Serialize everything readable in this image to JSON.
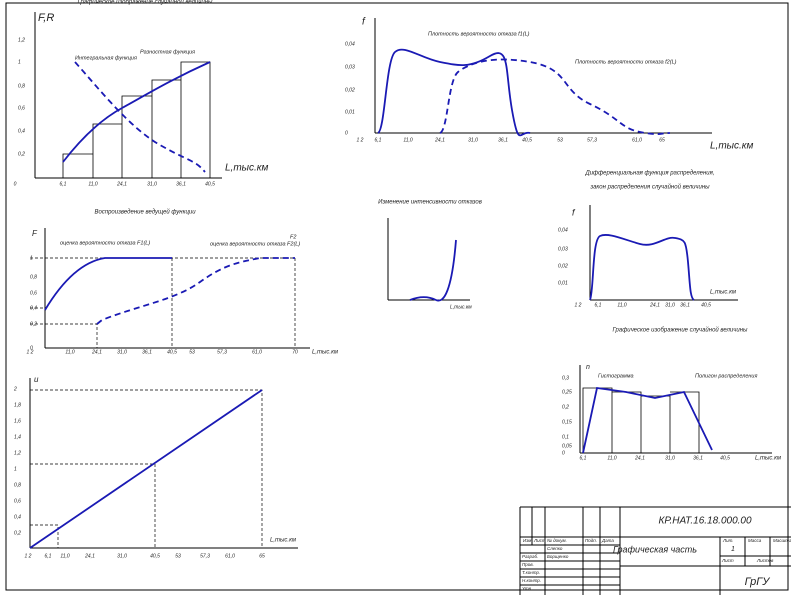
{
  "charts": [
    {
      "title": "Графическое изображение случайной величины",
      "ylabel": "F,R",
      "yticks": [
        "1,2",
        "1",
        "0,8",
        "0,6",
        "0,4",
        "0,2"
      ],
      "xticks": [
        "0",
        "6,1",
        "11,0",
        "24,1",
        "31,0",
        "36,1",
        "40,5"
      ],
      "xlabel": "L,тыс.км",
      "notes": [
        "Интегральная функция",
        "Разностная функция"
      ]
    },
    {
      "ylabel": "f",
      "yticks": [
        "0,04",
        "0,03",
        "0,02",
        "0,01",
        "0"
      ],
      "xticks": [
        "1 2",
        "6,1",
        "11,0",
        "24,1",
        "31,0",
        "36,1",
        "40,5",
        "53",
        "57,3",
        "61,0",
        "65"
      ],
      "xlabel": "L,тыс.км",
      "notes": [
        "Плотность вероятности отказа f1(L)",
        "Плотность вероятности отказа f2(L)"
      ]
    },
    {
      "title": "Воспроизведение ведущей функции",
      "ylabel": "F",
      "yticks": [
        "1",
        "0,8",
        "0,6",
        "0,4",
        "0,2",
        "0"
      ],
      "xticks": [
        "1 2",
        "11,0",
        "24,1",
        "31,0",
        "36,1",
        "40,5",
        "53",
        "57,3",
        "61,0",
        "70"
      ],
      "xlabel": "L,тыс.км",
      "notes": [
        "оценка вероятности отказа F1(L)",
        "оценка вероятности отказа F2(L)",
        "F2"
      ]
    },
    {
      "title": "Изменение интенсивности отказов",
      "xlabel": "L,тыс.км"
    },
    {
      "title": "Дифференциальная функция распределения,",
      "subtitle": "закон распределения случайной величины",
      "ylabel": "f",
      "yticks": [
        "0,04",
        "0,03",
        "0,02",
        "0,01"
      ],
      "xticks": [
        "1 2",
        "6,1",
        "11,0",
        "24,1",
        "31,0",
        "36,1",
        "40,5"
      ],
      "xlabel": "L,тыс.км"
    },
    {
      "ylabel": "u",
      "yticks": [
        "2",
        "1,8",
        "1,6",
        "1,4",
        "1,2",
        "1",
        "0,8",
        "0,6",
        "0,4",
        "0,2"
      ],
      "xticks": [
        "1 2",
        "6,1",
        "11,0",
        "24,1",
        "31,0",
        "40,5",
        "53",
        "57,3",
        "61,0",
        "65"
      ],
      "xlabel": "L,тыс.км"
    },
    {
      "title": "Графическое изображение случайной величины",
      "ylabel": "n",
      "yticks": [
        "0,3",
        "0,25",
        "0,2",
        "0,15",
        "0,1",
        "0,05",
        "0"
      ],
      "xticks": [
        "6,1",
        "11,0",
        "24,1",
        "31,0",
        "36,1",
        "40,5"
      ],
      "xlabel": "L,тыс.км",
      "notes": [
        "Гистограмма",
        "Полигон распределения"
      ]
    }
  ],
  "stamp": {
    "code": "КР.НАТ.16.18.000.00",
    "name": "Графическая часть",
    "org": "ГрГУ",
    "cols": [
      "Изм.",
      "Лист",
      "№ докум.",
      "Подп.",
      "Дата"
    ],
    "rows": [
      "Разраб.",
      "Пров.",
      "Т.контр.",
      "Н.контр.",
      "Утв."
    ],
    "people": [
      "Слепко",
      "Борщенко"
    ],
    "head": [
      "Лит.",
      "Масса",
      "Масштаб"
    ],
    "sheet": [
      "Лист",
      "Листов"
    ],
    "num": "1"
  }
}
